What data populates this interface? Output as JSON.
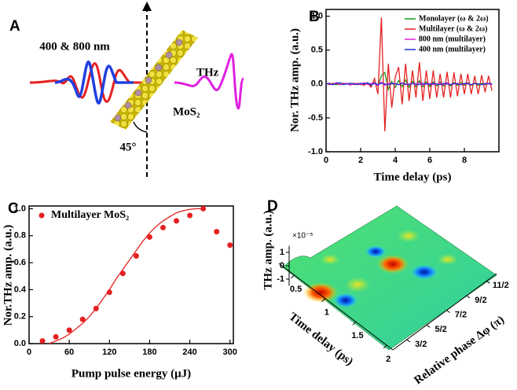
{
  "diagram": {
    "panel_label": "A",
    "beam_label": "400 & 800 nm",
    "output_label": "THz",
    "material_label": "MoS₂",
    "angle_label": "45°"
  },
  "chart_data": [
    {
      "type": "line",
      "panel_label": "B",
      "xlabel": "Time delay (ps)",
      "ylabel": "Nor. THz amp. (a.u.)",
      "xlim": [
        0,
        10
      ],
      "ylim": [
        -1,
        1.1
      ],
      "xticks": [
        0,
        2,
        4,
        6,
        8
      ],
      "yticks": [
        {
          "value": 1,
          "label": "1.0"
        },
        {
          "value": 0.5,
          "label": "0.5"
        },
        {
          "value": 0,
          "label": "0.0"
        },
        {
          "value": -0.5,
          "label": "-0.5"
        },
        {
          "value": -1,
          "label": "-1.0"
        }
      ],
      "legend": "upper right",
      "x": [
        0,
        0.2,
        0.4,
        0.6,
        0.8,
        1,
        1.2,
        1.4,
        1.6,
        1.8,
        2,
        2.2,
        2.4,
        2.6,
        2.8,
        3,
        3.2,
        3.4,
        3.6,
        3.8,
        4,
        4.2,
        4.4,
        4.6,
        4.8,
        5,
        5.2,
        5.4,
        5.6,
        5.8,
        6,
        6.2,
        6.4,
        6.6,
        6.8,
        7,
        7.2,
        7.4,
        7.6,
        7.8,
        8,
        8.2,
        8.4,
        8.6,
        8.8,
        9,
        9.2,
        9.4,
        9.6
      ],
      "series": [
        {
          "name": "Monolayer (ω & 2ω)",
          "color": "#1a9a1a",
          "values": [
            0,
            0.01,
            0,
            -0.01,
            0,
            0.01,
            0,
            0,
            0.01,
            0,
            -0.01,
            0,
            0.01,
            0,
            0.02,
            -0.03,
            0.12,
            0.17,
            -0.08,
            0.04,
            -0.05,
            0.05,
            -0.04,
            0.06,
            -0.05,
            0.04,
            -0.04,
            0.05,
            -0.04,
            0.03,
            -0.04,
            0.03,
            -0.03,
            0.03,
            -0.03,
            0.02,
            -0.03,
            0.02,
            -0.02,
            0.02,
            -0.02,
            0.02,
            -0.02,
            0.01,
            -0.02,
            0.01,
            -0.01,
            0.01,
            -0.01
          ]
        },
        {
          "name": "Multilayer (ω & 2ω)",
          "color": "#e62020",
          "values": [
            0.01,
            -0.01,
            0.01,
            0,
            -0.01,
            0.01,
            0,
            0.01,
            -0.01,
            0.01,
            0,
            -0.02,
            0.02,
            -0.05,
            0.08,
            -0.15,
            0.98,
            -0.7,
            0.3,
            -0.35,
            0.1,
            0.25,
            -0.3,
            0.3,
            -0.25,
            0.2,
            -0.2,
            0.32,
            -0.25,
            0.2,
            -0.22,
            0.2,
            -0.2,
            0.15,
            -0.2,
            0.18,
            -0.2,
            0.17,
            -0.18,
            0.15,
            -0.15,
            0.15,
            -0.15,
            0.12,
            -0.15,
            0.13,
            -0.12,
            0.12,
            -0.1
          ]
        },
        {
          "name": "800 nm (multilayer)",
          "color": "#e020e0",
          "values": [
            0,
            0.01,
            -0.01,
            0.02,
            -0.01,
            0,
            0.01,
            -0.02,
            0.01,
            0,
            -0.01,
            0.02,
            -0.01,
            0.01,
            0,
            -0.02,
            0.03,
            -0.02,
            0.01,
            0,
            0.01,
            -0.01,
            0.02,
            -0.01,
            0,
            0.01,
            -0.01,
            0.02,
            -0.01,
            0,
            0.01,
            -0.01,
            0,
            0.01,
            -0.01,
            0.02,
            -0.01,
            0,
            0.01,
            -0.01,
            0,
            0.01,
            -0.01,
            0.01,
            0,
            -0.01,
            0.01,
            0,
            -0.01
          ]
        },
        {
          "name": "400 nm (multilayer)",
          "color": "#2030d0",
          "values": [
            0.01,
            0,
            -0.01,
            0.01,
            0.02,
            -0.01,
            0,
            0.01,
            0,
            -0.01,
            0.01,
            0,
            0.02,
            -0.02,
            0.02,
            -0.01,
            0.01,
            0,
            -0.01,
            0.01,
            0,
            -0.01,
            0.01,
            0,
            -0.01,
            0.01,
            0,
            -0.01,
            0.01,
            0,
            -0.01,
            0.01,
            0,
            -0.01,
            0.01,
            0,
            -0.01,
            0.01,
            0,
            -0.01,
            0.01,
            0,
            -0.01,
            0.01,
            0,
            -0.01,
            0,
            0.01,
            0
          ]
        }
      ]
    },
    {
      "type": "scatter",
      "panel_label": "C",
      "xlabel": "Pump pulse energy (μJ)",
      "ylabel": "Nor.THz amp. (a.u.)",
      "xlim": [
        0,
        305
      ],
      "ylim": [
        0,
        1.02
      ],
      "xticks": [
        0,
        60,
        120,
        180,
        240,
        300
      ],
      "yticks": [
        {
          "value": 0,
          "label": "0.0"
        },
        {
          "value": 0.2,
          "label": "0.2"
        },
        {
          "value": 0.4,
          "label": "0.4"
        },
        {
          "value": 0.6,
          "label": "0.6"
        },
        {
          "value": 0.8,
          "label": "0.8"
        },
        {
          "value": 1,
          "label": "1.0"
        }
      ],
      "legend": "upper left",
      "series": [
        {
          "name": "Multilayer MoS₂",
          "color": "#e62020",
          "x": [
            20,
            40,
            60,
            80,
            100,
            120,
            140,
            160,
            180,
            200,
            220,
            240,
            260,
            280,
            300
          ],
          "values": [
            0.02,
            0.05,
            0.1,
            0.18,
            0.26,
            0.38,
            0.52,
            0.65,
            0.79,
            0.86,
            0.91,
            0.95,
            1.0,
            0.83,
            0.73
          ]
        },
        {
          "type": "line",
          "color": "#e62020",
          "x": [
            30,
            40,
            50,
            60,
            70,
            80,
            90,
            100,
            110,
            120,
            130,
            140,
            150,
            160,
            170,
            180,
            190,
            200,
            210,
            220,
            230,
            240,
            250,
            260
          ],
          "values": [
            0,
            0.02,
            0.04,
            0.07,
            0.11,
            0.15,
            0.2,
            0.26,
            0.33,
            0.4,
            0.48,
            0.55,
            0.62,
            0.69,
            0.76,
            0.82,
            0.87,
            0.91,
            0.94,
            0.97,
            0.985,
            0.995,
            1.0,
            1.0
          ]
        }
      ]
    },
    {
      "type": "surface",
      "panel_label": "D",
      "zlabel": "THz amp. (a.u.)",
      "z_exponent_label": "×10⁻⁵",
      "zlim": [
        -1.5,
        1.5
      ],
      "zticks": [
        1,
        0,
        -1
      ],
      "xlabel": "Time delay (ps)",
      "xlim": [
        0.25,
        2.1
      ],
      "xticks": [
        0.5,
        1,
        1.5,
        2
      ],
      "ylabel": "Relative phase Δφ (π)",
      "ylim": [
        0.8,
        6
      ],
      "yticks": [
        {
          "value": 1.5,
          "label": "3/2"
        },
        {
          "value": 2.5,
          "label": "5/2"
        },
        {
          "value": 3.5,
          "label": "7/2"
        },
        {
          "value": 4.5,
          "label": "9/2"
        },
        {
          "value": 5.5,
          "label": "11/2"
        }
      ]
    }
  ]
}
